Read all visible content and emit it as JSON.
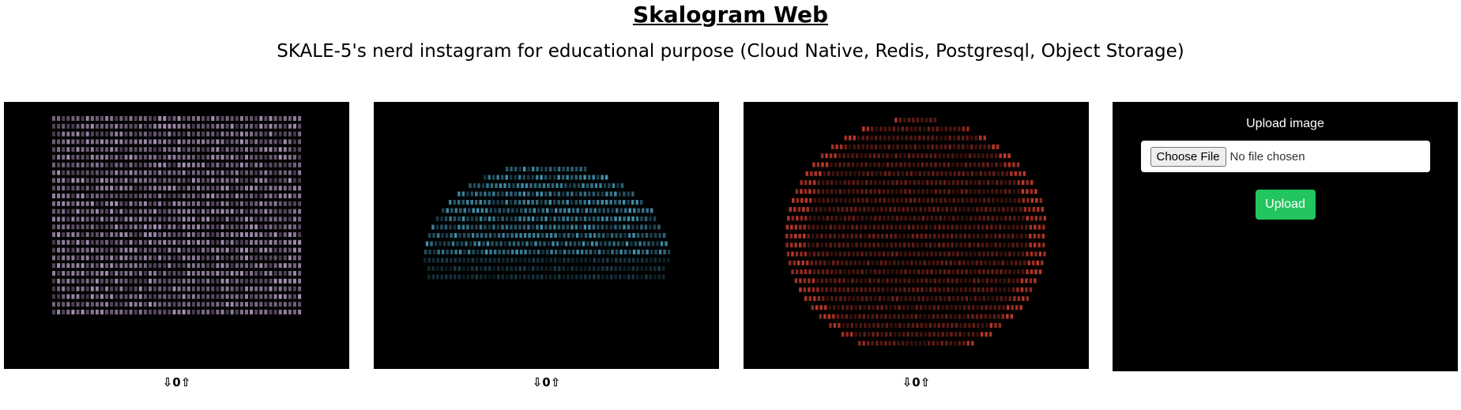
{
  "header": {
    "title": "Skalogram Web",
    "subtitle": "SKALE-5's nerd instagram for educational purpose (Cloud Native, Redis, Postgresql, Object Storage)"
  },
  "posts": [
    {
      "art_icon": "ascii-art-text-block",
      "down": "⇩",
      "count": "0",
      "up": "⇧",
      "art_color": "#b9a0c8"
    },
    {
      "art_icon": "ascii-art-dome",
      "down": "⇩",
      "count": "0",
      "up": "⇧",
      "art_color": "#4aa3c4"
    },
    {
      "art_icon": "ascii-art-red-circle",
      "down": "⇩",
      "count": "0",
      "up": "⇧",
      "art_color": "#c0392b"
    }
  ],
  "upload": {
    "label": "Upload image",
    "choose_file": "Choose File",
    "no_file": "No file chosen",
    "button": "Upload",
    "button_color": "#22c55e"
  }
}
